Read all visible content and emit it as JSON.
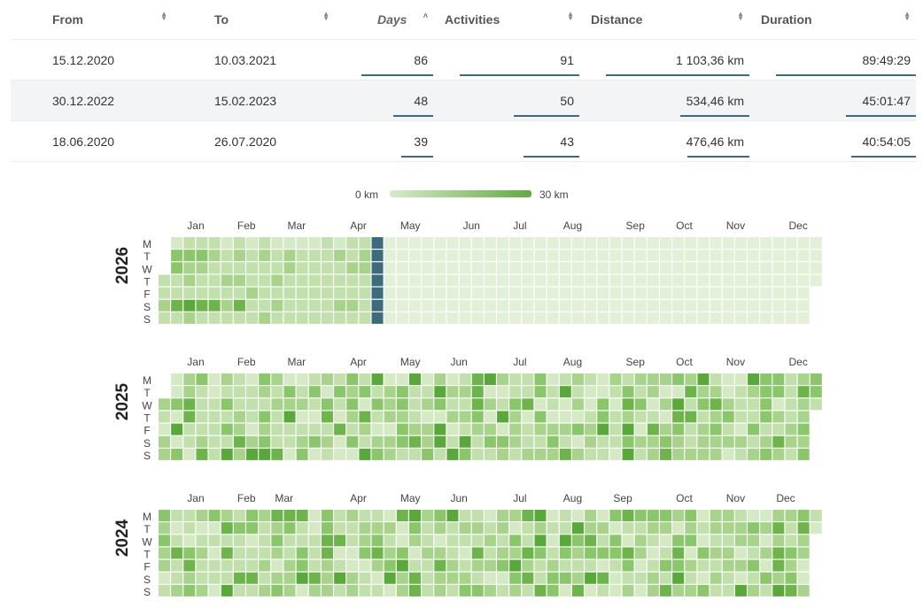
{
  "table": {
    "columns": [
      {
        "key": "from",
        "label": "From",
        "sort": "both"
      },
      {
        "key": "to",
        "label": "To",
        "sort": "both"
      },
      {
        "key": "days",
        "label": "Days",
        "sort": "asc"
      },
      {
        "key": "activities",
        "label": "Activities",
        "sort": "both"
      },
      {
        "key": "distance",
        "label": "Distance",
        "sort": "both"
      },
      {
        "key": "duration",
        "label": "Duration",
        "sort": "both"
      }
    ],
    "rows": [
      {
        "from": "15.12.2020",
        "to": "10.03.2021",
        "days": "86",
        "activities": "91",
        "distance": "1 103,36 km",
        "duration": "89:49:29"
      },
      {
        "from": "30.12.2022",
        "to": "15.02.2023",
        "days": "48",
        "activities": "50",
        "distance": "534,46 km",
        "duration": "45:01:47"
      },
      {
        "from": "18.06.2020",
        "to": "26.07.2020",
        "days": "39",
        "activities": "43",
        "distance": "476,46 km",
        "duration": "40:54:05"
      }
    ],
    "bar_fractions": [
      {
        "days": 1.0,
        "activities": 1.0,
        "distance": 1.0,
        "duration": 1.0
      },
      {
        "days": 0.56,
        "activities": 0.55,
        "distance": 0.48,
        "duration": 0.5
      },
      {
        "days": 0.45,
        "activities": 0.47,
        "distance": 0.43,
        "duration": 0.46
      }
    ]
  },
  "legend": {
    "min_label": "0 km",
    "max_label": "30 km",
    "min_color": "#d6ebc8",
    "max_color": "#60ab3f"
  },
  "heatmap": {
    "weekday_labels": [
      "M",
      "T",
      "W",
      "T",
      "F",
      "S",
      "S"
    ],
    "colors": {
      "empty": "#e2f0d7",
      "levels": [
        "#d4e9c4",
        "#c2e0ac",
        "#a8d38b",
        "#8ac66a",
        "#6db54b",
        "#59a83a"
      ],
      "current_week": "#3d6b7e"
    },
    "years": [
      {
        "year": "2026",
        "months": [
          {
            "label": "Jan",
            "week": 2
          },
          {
            "label": "Feb",
            "week": 6
          },
          {
            "label": "Mar",
            "week": 10
          },
          {
            "label": "Apr",
            "week": 15
          },
          {
            "label": "May",
            "week": 19
          },
          {
            "label": "Jun",
            "week": 24
          },
          {
            "label": "Jul",
            "week": 28
          },
          {
            "label": "Aug",
            "week": 32
          },
          {
            "label": "Sep",
            "week": 37
          },
          {
            "label": "Oct",
            "week": 41
          },
          {
            "label": "Nov",
            "week": 45
          },
          {
            "label": "Dec",
            "week": 50
          }
        ],
        "start_weekday": 3,
        "days": 365,
        "current_week": 17,
        "active_weeks": 17,
        "intensity": [
          [
            0,
            0,
            0,
            1,
            1,
            2,
            1
          ],
          [
            0,
            3,
            3,
            1,
            1,
            4,
            1
          ],
          [
            1,
            3,
            2,
            2,
            1,
            5,
            2
          ],
          [
            1,
            3,
            2,
            1,
            1,
            4,
            1
          ],
          [
            1,
            2,
            1,
            1,
            1,
            4,
            1
          ],
          [
            0,
            1,
            1,
            2,
            1,
            2,
            1
          ],
          [
            1,
            2,
            1,
            2,
            1,
            4,
            1
          ],
          [
            0,
            1,
            1,
            1,
            2,
            1,
            1
          ],
          [
            1,
            2,
            1,
            1,
            1,
            1,
            2
          ],
          [
            0,
            1,
            1,
            2,
            1,
            2,
            1
          ],
          [
            0,
            2,
            2,
            1,
            1,
            1,
            1
          ],
          [
            0,
            1,
            1,
            1,
            1,
            1,
            1
          ],
          [
            0,
            1,
            1,
            1,
            1,
            1,
            1
          ],
          [
            1,
            1,
            1,
            1,
            1,
            1,
            1
          ],
          [
            0,
            2,
            1,
            1,
            1,
            2,
            1
          ],
          [
            1,
            1,
            2,
            1,
            1,
            2,
            1
          ],
          [
            1,
            2,
            2,
            1,
            1,
            1,
            1
          ],
          [
            1,
            1,
            1,
            1,
            1,
            1,
            1
          ]
        ]
      },
      {
        "year": "2025",
        "months": [
          {
            "label": "Jan",
            "week": 2
          },
          {
            "label": "Feb",
            "week": 6
          },
          {
            "label": "Mar",
            "week": 10
          },
          {
            "label": "Apr",
            "week": 15
          },
          {
            "label": "May",
            "week": 19
          },
          {
            "label": "Jun",
            "week": 23
          },
          {
            "label": "Jul",
            "week": 28
          },
          {
            "label": "Aug",
            "week": 32
          },
          {
            "label": "Sep",
            "week": 37
          },
          {
            "label": "Oct",
            "week": 41
          },
          {
            "label": "Nov",
            "week": 45
          },
          {
            "label": "Dec",
            "week": 50
          }
        ],
        "start_weekday": 2,
        "days": 365,
        "current_week": -1,
        "active_weeks": 53,
        "seed": 25
      },
      {
        "year": "2024",
        "months": [
          {
            "label": "Jan",
            "week": 2
          },
          {
            "label": "Feb",
            "week": 6
          },
          {
            "label": "Mar",
            "week": 9
          },
          {
            "label": "Apr",
            "week": 15
          },
          {
            "label": "May",
            "week": 19
          },
          {
            "label": "Jun",
            "week": 23
          },
          {
            "label": "Jul",
            "week": 28
          },
          {
            "label": "Aug",
            "week": 32
          },
          {
            "label": "Sep",
            "week": 36
          },
          {
            "label": "Oct",
            "week": 41
          },
          {
            "label": "Nov",
            "week": 45
          },
          {
            "label": "Dec",
            "week": 49
          }
        ],
        "start_weekday": 0,
        "days": 366,
        "current_week": -1,
        "active_weeks": 53,
        "seed": 24
      }
    ]
  }
}
